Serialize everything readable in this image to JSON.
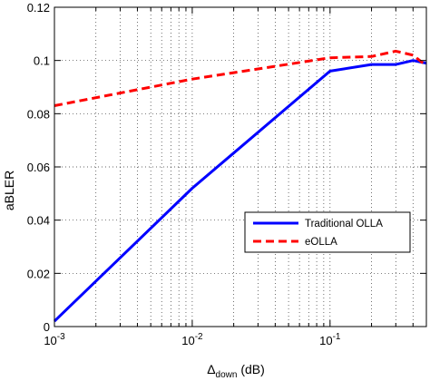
{
  "chart_data": {
    "type": "line",
    "title": "",
    "xlabel": {
      "symbol": "Δ",
      "subscript": "down",
      "unit": " (dB)"
    },
    "ylabel": "aBLER",
    "x_scale": "log",
    "xlim": [
      0.001,
      0.5
    ],
    "ylim": [
      0,
      0.12
    ],
    "grid": true,
    "legend_position": "lower-right",
    "x_ticks": [
      {
        "value": 0.001,
        "base": "10",
        "exp": "-3"
      },
      {
        "value": 0.01,
        "base": "10",
        "exp": "-2"
      },
      {
        "value": 0.1,
        "base": "10",
        "exp": "-1"
      }
    ],
    "y_ticks": [
      {
        "value": 0,
        "label": "0"
      },
      {
        "value": 0.02,
        "label": "0.02"
      },
      {
        "value": 0.04,
        "label": "0.04"
      },
      {
        "value": 0.06,
        "label": "0.06"
      },
      {
        "value": 0.08,
        "label": "0.08"
      },
      {
        "value": 0.1,
        "label": "0.1"
      },
      {
        "value": 0.12,
        "label": "0.12"
      }
    ],
    "series": [
      {
        "name": "Traditional OLLA",
        "color": "#0000ff",
        "style": "solid",
        "x": [
          0.001,
          0.01,
          0.1,
          0.2,
          0.3,
          0.4,
          0.5
        ],
        "y": [
          0.002,
          0.052,
          0.096,
          0.0985,
          0.0985,
          0.1,
          0.099
        ]
      },
      {
        "name": "eOLLA",
        "color": "#ff0000",
        "style": "dashed",
        "x": [
          0.001,
          0.01,
          0.1,
          0.2,
          0.3,
          0.4,
          0.5
        ],
        "y": [
          0.083,
          0.093,
          0.101,
          0.1015,
          0.1035,
          0.102,
          0.098
        ]
      }
    ]
  }
}
